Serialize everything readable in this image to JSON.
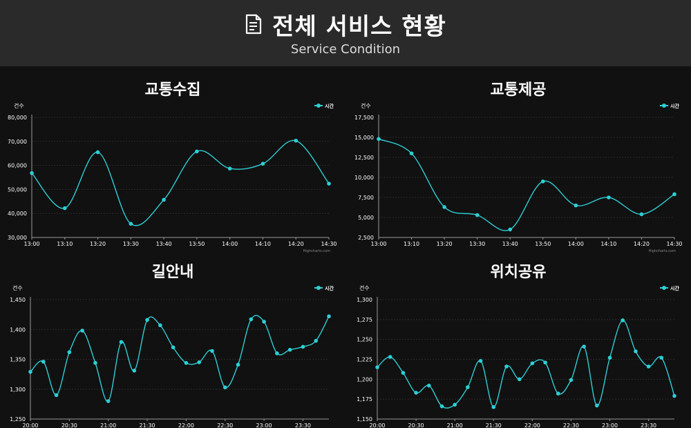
{
  "header": {
    "title": "전체 서비스 현황",
    "subtitle": "Service Condition",
    "icon": "document-icon"
  },
  "colors": {
    "background": "#111111",
    "header": "#2a2a2a",
    "series": "#2ecfd6",
    "grid": "#2c2c2c",
    "text": "#ffffff"
  },
  "chart_data": [
    {
      "type": "line",
      "title": "교통수집",
      "ylabel": "건수",
      "legend": "top-right",
      "credit": "Highcharts.com",
      "categories": [
        "13:00",
        "13:05",
        "13:10",
        "13:15",
        "13:20",
        "13:25",
        "13:30",
        "13:35",
        "13:40",
        "13:45",
        "13:50",
        "13:55",
        "14:00",
        "14:05",
        "14:10",
        "14:15",
        "14:20",
        "14:25",
        "14:30"
      ],
      "x_ticks": [
        "13:00",
        "13:10",
        "13:20",
        "13:30",
        "13:40",
        "13:50",
        "14:00",
        "14:10",
        "14:20",
        "14:30"
      ],
      "ylim": [
        30000,
        80000
      ],
      "y_ticks": [
        30000,
        40000,
        50000,
        60000,
        70000,
        80000
      ],
      "y_tick_labels": [
        "30,000",
        "40,000",
        "50,000",
        "60,000",
        "70,000",
        "80,000"
      ],
      "series": [
        {
          "name": "시간",
          "values": [
            56800,
            null,
            42200,
            null,
            65500,
            null,
            35700,
            null,
            45700,
            null,
            65800,
            null,
            58700,
            null,
            60700,
            null,
            70300,
            null,
            52400
          ]
        }
      ]
    },
    {
      "type": "line",
      "title": "교통제공",
      "ylabel": "건수",
      "legend": "top-right",
      "credit": "Highcharts.com",
      "categories": [
        "13:00",
        "13:05",
        "13:10",
        "13:15",
        "13:20",
        "13:25",
        "13:30",
        "13:35",
        "13:40",
        "13:45",
        "13:50",
        "13:55",
        "14:00",
        "14:05",
        "14:10",
        "14:15",
        "14:20",
        "14:25",
        "14:30"
      ],
      "x_ticks": [
        "13:00",
        "13:10",
        "13:20",
        "13:30",
        "13:40",
        "13:50",
        "14:00",
        "14:10",
        "14:20",
        "14:30"
      ],
      "ylim": [
        2500,
        17500
      ],
      "y_ticks": [
        2500,
        5000,
        7500,
        10000,
        12500,
        15000,
        17500
      ],
      "y_tick_labels": [
        "2,500",
        "5,000",
        "7,500",
        "10,000",
        "12,500",
        "15,000",
        "17,500"
      ],
      "series": [
        {
          "name": "시간",
          "values": [
            14800,
            null,
            13000,
            null,
            6300,
            null,
            5300,
            null,
            3500,
            null,
            9500,
            null,
            6500,
            null,
            7500,
            null,
            5400,
            null,
            7900
          ]
        }
      ]
    },
    {
      "type": "line",
      "title": "길안내",
      "ylabel": "건수",
      "legend": "top-right",
      "categories": [
        "20:00",
        "20:10",
        "20:20",
        "20:30",
        "20:40",
        "20:50",
        "21:00",
        "21:10",
        "21:20",
        "21:30",
        "21:40",
        "21:50",
        "22:00",
        "22:10",
        "22:20",
        "22:30",
        "22:40",
        "22:50",
        "23:00",
        "23:10",
        "23:20",
        "23:30",
        "23:40",
        "23:50"
      ],
      "x_ticks": [
        "20:00",
        "20:30",
        "21:00",
        "21:30",
        "22:00",
        "22:30",
        "23:00",
        "23:30"
      ],
      "ylim": [
        1250,
        1450
      ],
      "y_ticks": [
        1250,
        1300,
        1350,
        1400,
        1450
      ],
      "y_tick_labels": [
        "1,250",
        "1,300",
        "1,350",
        "1,400",
        "1,450"
      ],
      "series": [
        {
          "name": "시간",
          "values": [
            1329,
            1346,
            1290,
            1362,
            1398,
            1344,
            1280,
            1379,
            1331,
            1416,
            1407,
            1370,
            1344,
            1345,
            1364,
            1303,
            1341,
            1417,
            1413,
            1360,
            1366,
            1371,
            1381,
            1422
          ]
        }
      ]
    },
    {
      "type": "line",
      "title": "위치공유",
      "ylabel": "건수",
      "legend": "top-right",
      "categories": [
        "20:00",
        "20:10",
        "20:20",
        "20:30",
        "20:40",
        "20:50",
        "21:00",
        "21:10",
        "21:20",
        "21:30",
        "21:40",
        "21:50",
        "22:00",
        "22:10",
        "22:20",
        "22:30",
        "22:40",
        "22:50",
        "23:00",
        "23:10",
        "23:20",
        "23:30",
        "23:40",
        "23:50"
      ],
      "x_ticks": [
        "20:00",
        "20:30",
        "21:00",
        "21:30",
        "22:00",
        "22:30",
        "23:00",
        "23:30"
      ],
      "ylim": [
        1150,
        1300
      ],
      "y_ticks": [
        1150,
        1175,
        1200,
        1225,
        1250,
        1275,
        1300
      ],
      "y_tick_labels": [
        "1,150",
        "1,175",
        "1,200",
        "1,225",
        "1,250",
        "1,275",
        "1,300"
      ],
      "series": [
        {
          "name": "시간",
          "values": [
            1215,
            1228,
            1208,
            1183,
            1192,
            1166,
            1168,
            1190,
            1223,
            1165,
            1216,
            1200,
            1220,
            1221,
            1182,
            1199,
            1241,
            1167,
            1227,
            1274,
            1235,
            1216,
            1227,
            1179
          ]
        }
      ]
    }
  ]
}
